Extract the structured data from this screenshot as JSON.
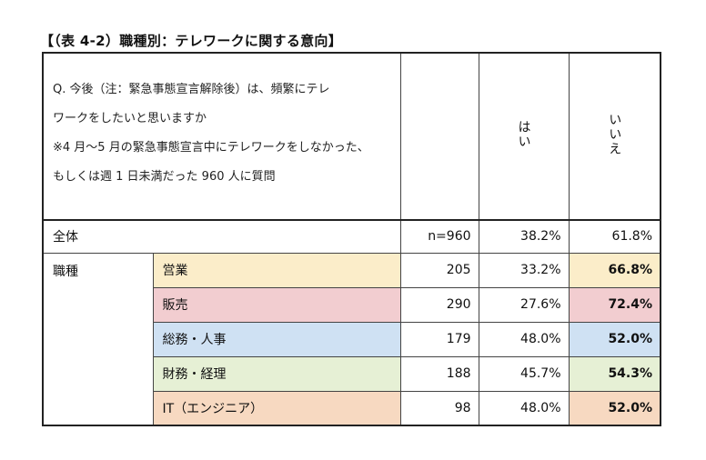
{
  "title": "【（表 4-2）職種別：テレワークに関する意向】",
  "header": {
    "question_lines": [
      "Q. 今後（注：緊急事態宣言解除後）は、頻繁にテレ",
      "ワークをしたいと思いますか",
      "※4 月～5 月の緊急事態宣言中にテレワークをしなかった、",
      "もしくは週 1 日未満だった 960 人に質問"
    ],
    "col_yes": "はい",
    "col_no": "いいえ"
  },
  "total": {
    "label": "全体",
    "n": "n=960",
    "yes": "38.2%",
    "no": "61.8%"
  },
  "group_label": "職種",
  "rows": [
    {
      "label": "営業",
      "n": "205",
      "yes": "33.2%",
      "no": "66.8%",
      "color": "#fbedc9"
    },
    {
      "label": "販売",
      "n": "290",
      "yes": "27.6%",
      "no": "72.4%",
      "color": "#f2cdd0"
    },
    {
      "label": "総務・人事",
      "n": "179",
      "yes": "48.0%",
      "no": "52.0%",
      "color": "#cfe1f3"
    },
    {
      "label": "財務・経理",
      "n": "188",
      "yes": "45.7%",
      "no": "54.3%",
      "color": "#e6f0d5"
    },
    {
      "label": "IT（エンジニア）",
      "n": "98",
      "yes": "48.0%",
      "no": "52.0%",
      "color": "#f7d9c1"
    }
  ]
}
